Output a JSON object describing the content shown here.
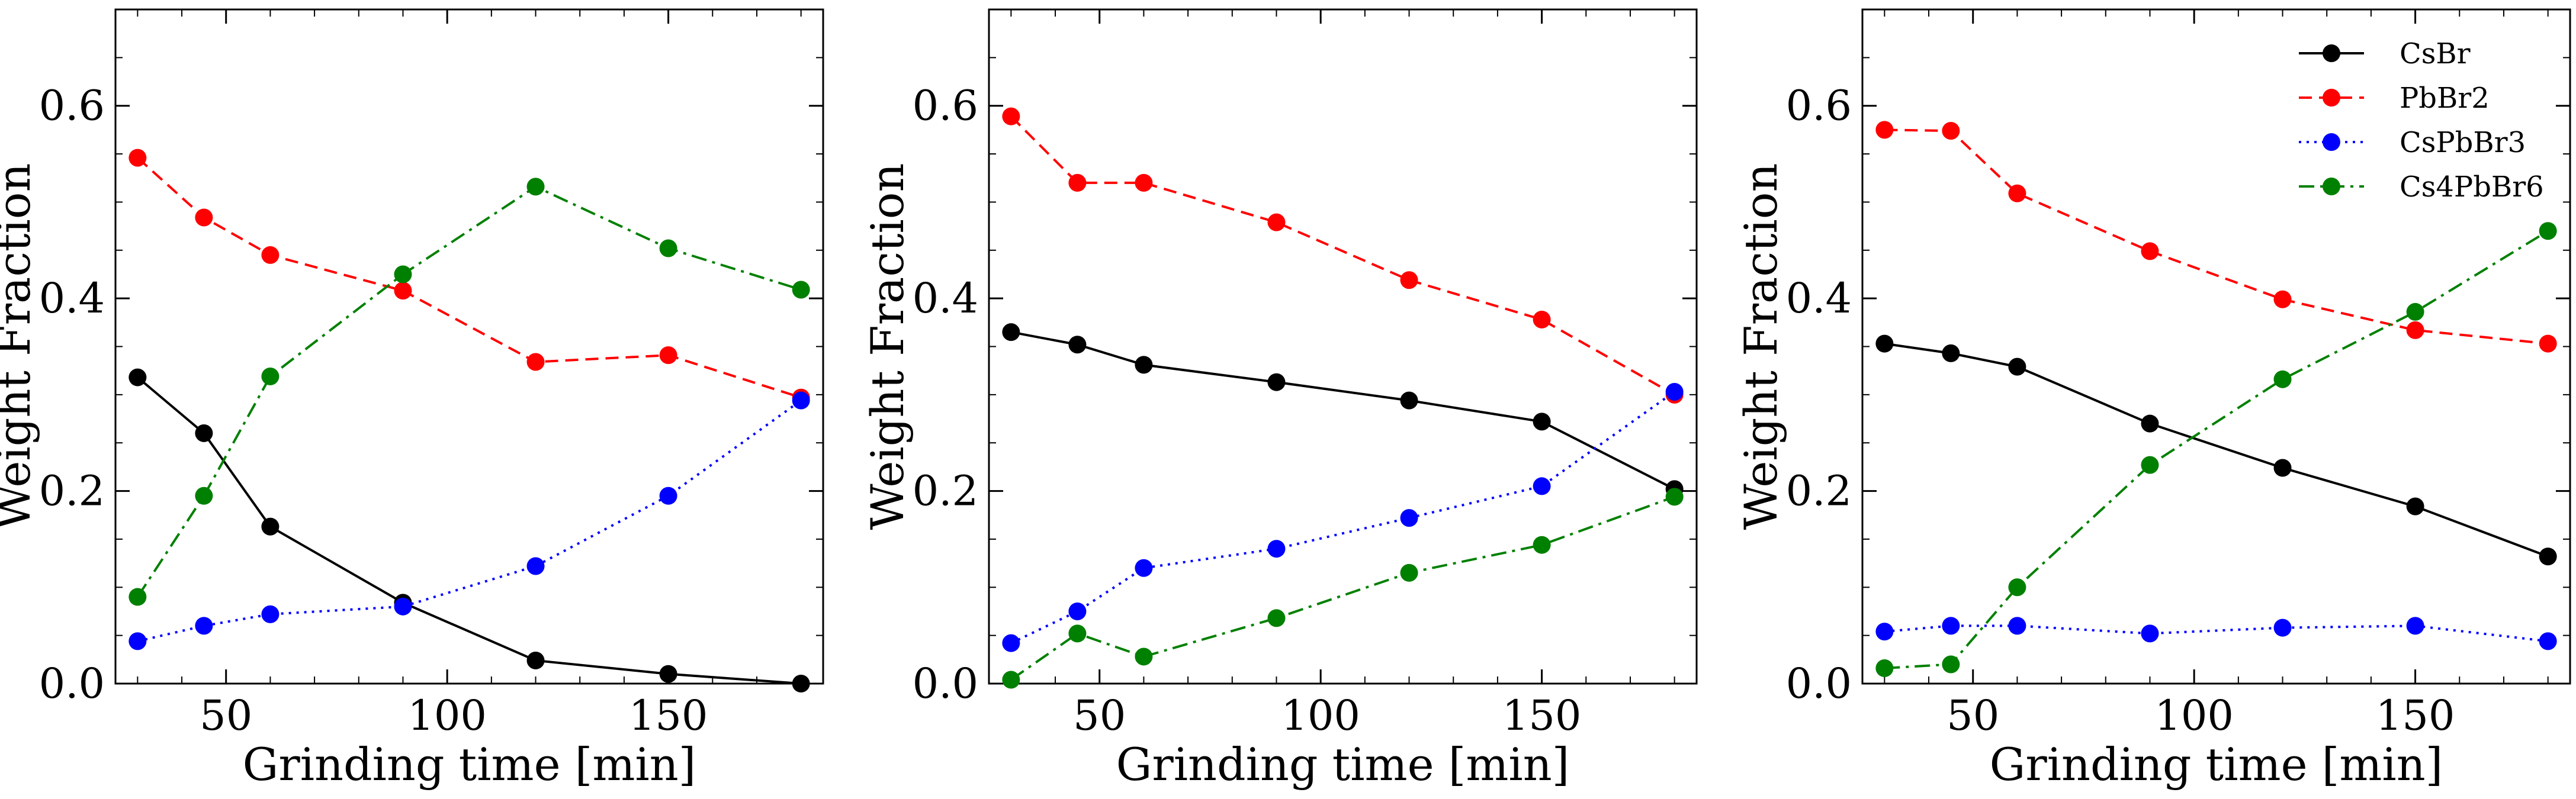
{
  "chart_data": [
    {
      "type": "line",
      "title": "",
      "xlabel": "Grinding time [min]",
      "ylabel": "Weight Fraction",
      "xlim": [
        25,
        185
      ],
      "ylim": [
        0,
        0.7
      ],
      "xticks": [
        50,
        100,
        150
      ],
      "yticks": [
        0.0,
        0.2,
        0.4,
        0.6
      ],
      "x": [
        30,
        45,
        60,
        90,
        120,
        150,
        180
      ],
      "series": [
        {
          "name": "CsBr",
          "color": "#000000",
          "dash": "solid",
          "values": [
            0.318,
            0.26,
            0.163,
            0.084,
            0.024,
            0.01,
            0.0
          ]
        },
        {
          "name": "PbBr2",
          "color": "#ff0000",
          "dash": "dashed",
          "values": [
            0.546,
            0.484,
            0.445,
            0.408,
            0.334,
            0.341,
            0.297
          ]
        },
        {
          "name": "CsPbBr3",
          "color": "#0000ff",
          "dash": "dotted",
          "values": [
            0.044,
            0.06,
            0.072,
            0.08,
            0.122,
            0.195,
            0.294
          ]
        },
        {
          "name": "Cs4PbBr6",
          "color": "#008000",
          "dash": "dashdot",
          "values": [
            0.09,
            0.195,
            0.319,
            0.425,
            0.516,
            0.452,
            0.409
          ]
        }
      ]
    },
    {
      "type": "line",
      "title": "",
      "xlabel": "Grinding time [min]",
      "ylabel": "Weight Fraction",
      "xlim": [
        25,
        185
      ],
      "ylim": [
        0,
        0.7
      ],
      "xticks": [
        50,
        100,
        150
      ],
      "yticks": [
        0.0,
        0.2,
        0.4,
        0.6
      ],
      "x": [
        30,
        45,
        60,
        90,
        120,
        150,
        180
      ],
      "series": [
        {
          "name": "CsBr",
          "color": "#000000",
          "dash": "solid",
          "values": [
            0.365,
            0.352,
            0.331,
            0.313,
            0.294,
            0.272,
            0.202
          ]
        },
        {
          "name": "PbBr2",
          "color": "#ff0000",
          "dash": "dashed",
          "values": [
            0.589,
            0.52,
            0.52,
            0.479,
            0.419,
            0.378,
            0.3
          ]
        },
        {
          "name": "CsPbBr3",
          "color": "#0000ff",
          "dash": "dotted",
          "values": [
            0.042,
            0.075,
            0.12,
            0.14,
            0.172,
            0.205,
            0.303
          ]
        },
        {
          "name": "Cs4PbBr6",
          "color": "#008000",
          "dash": "dashdot",
          "values": [
            0.004,
            0.052,
            0.028,
            0.068,
            0.115,
            0.144,
            0.194
          ]
        }
      ]
    },
    {
      "type": "line",
      "title": "",
      "xlabel": "Grinding time [min]",
      "ylabel": "Weight Fraction",
      "xlim": [
        25,
        185
      ],
      "ylim": [
        0,
        0.7
      ],
      "xticks": [
        50,
        100,
        150
      ],
      "yticks": [
        0.0,
        0.2,
        0.4,
        0.6
      ],
      "legend": "top-right",
      "x": [
        30,
        45,
        60,
        90,
        120,
        150,
        180
      ],
      "series": [
        {
          "name": "CsBr",
          "color": "#000000",
          "dash": "solid",
          "values": [
            0.353,
            0.343,
            0.329,
            0.27,
            0.224,
            0.184,
            0.132
          ]
        },
        {
          "name": "PbBr2",
          "color": "#ff0000",
          "dash": "dashed",
          "values": [
            0.575,
            0.574,
            0.509,
            0.449,
            0.399,
            0.367,
            0.353
          ]
        },
        {
          "name": "CsPbBr3",
          "color": "#0000ff",
          "dash": "dotted",
          "values": [
            0.054,
            0.06,
            0.06,
            0.052,
            0.058,
            0.06,
            0.044
          ]
        },
        {
          "name": "Cs4PbBr6",
          "color": "#008000",
          "dash": "dashdot",
          "values": [
            0.016,
            0.02,
            0.1,
            0.227,
            0.316,
            0.386,
            0.47
          ]
        }
      ]
    }
  ]
}
